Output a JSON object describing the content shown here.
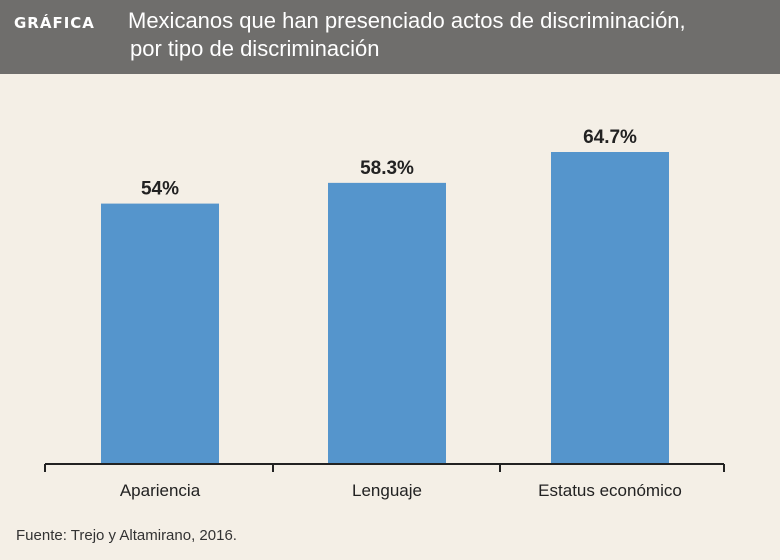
{
  "header": {
    "tag": "GRÁFICA",
    "title_line1": "Mexicanos que han presenciado actos de discriminación,",
    "title_line2": "por tipo de discriminación"
  },
  "chart_data": {
    "type": "bar",
    "categories": [
      "Apariencia",
      "Lenguaje",
      "Estatus económico"
    ],
    "values": [
      54,
      58.3,
      64.7
    ],
    "data_labels": [
      "54%",
      "58.3%",
      "64.7%"
    ],
    "ylim": [
      0,
      70
    ],
    "grid": false,
    "legend": "none",
    "bar_color": "#5595cc",
    "axis_color": "#222222"
  },
  "source": "Fuente: Trejo y Altamirano, 2016."
}
